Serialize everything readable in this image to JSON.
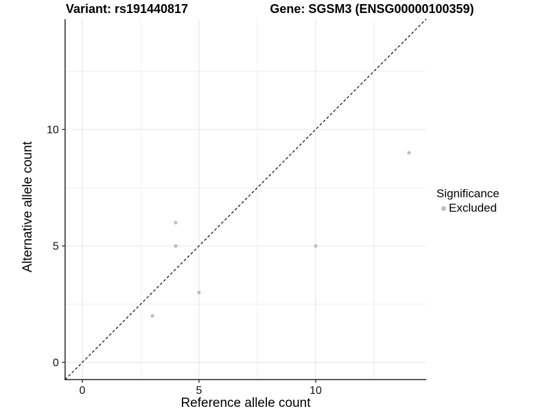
{
  "chart_data": {
    "type": "scatter",
    "titles": {
      "left": "Variant: rs191440817",
      "right": "Gene: SGSM3 (ENSG00000100359)"
    },
    "xlabel": "Reference allele count",
    "ylabel": "Alternative allele count",
    "xlim": [
      -0.74,
      14.74
    ],
    "ylim": [
      -0.74,
      14.74
    ],
    "xticks": {
      "major": [
        0,
        5,
        10
      ],
      "minor": [
        2.5,
        7.5,
        12.5
      ],
      "labels": [
        "0",
        "5",
        "10"
      ]
    },
    "yticks": {
      "major": [
        0,
        5,
        10
      ],
      "minor": [
        2.5,
        7.5,
        12.5
      ],
      "labels": [
        "0",
        "5",
        "10"
      ]
    },
    "grid": {
      "on": true,
      "major_color": "#e3e3e3",
      "minor_color": "#efefef"
    },
    "reference_line": {
      "type": "identity",
      "slope": 1,
      "intercept": 0,
      "style": "dashed",
      "color": "#000000"
    },
    "series": [
      {
        "name": "Excluded",
        "color": "#bebebe",
        "marker": "circle",
        "points": [
          [
            3,
            2
          ],
          [
            4,
            5
          ],
          [
            4,
            6
          ],
          [
            5,
            3
          ],
          [
            10,
            5
          ],
          [
            14,
            9
          ]
        ]
      }
    ],
    "legend": {
      "title": "Significance",
      "position": "right",
      "entries": [
        {
          "label": "Excluded",
          "color": "#bebebe"
        }
      ]
    },
    "colors": {
      "background": "#ffffff",
      "axis_line": "#333333",
      "tick_mark": "#333333",
      "tick_text": "#111111",
      "title_text": "#000000"
    }
  }
}
